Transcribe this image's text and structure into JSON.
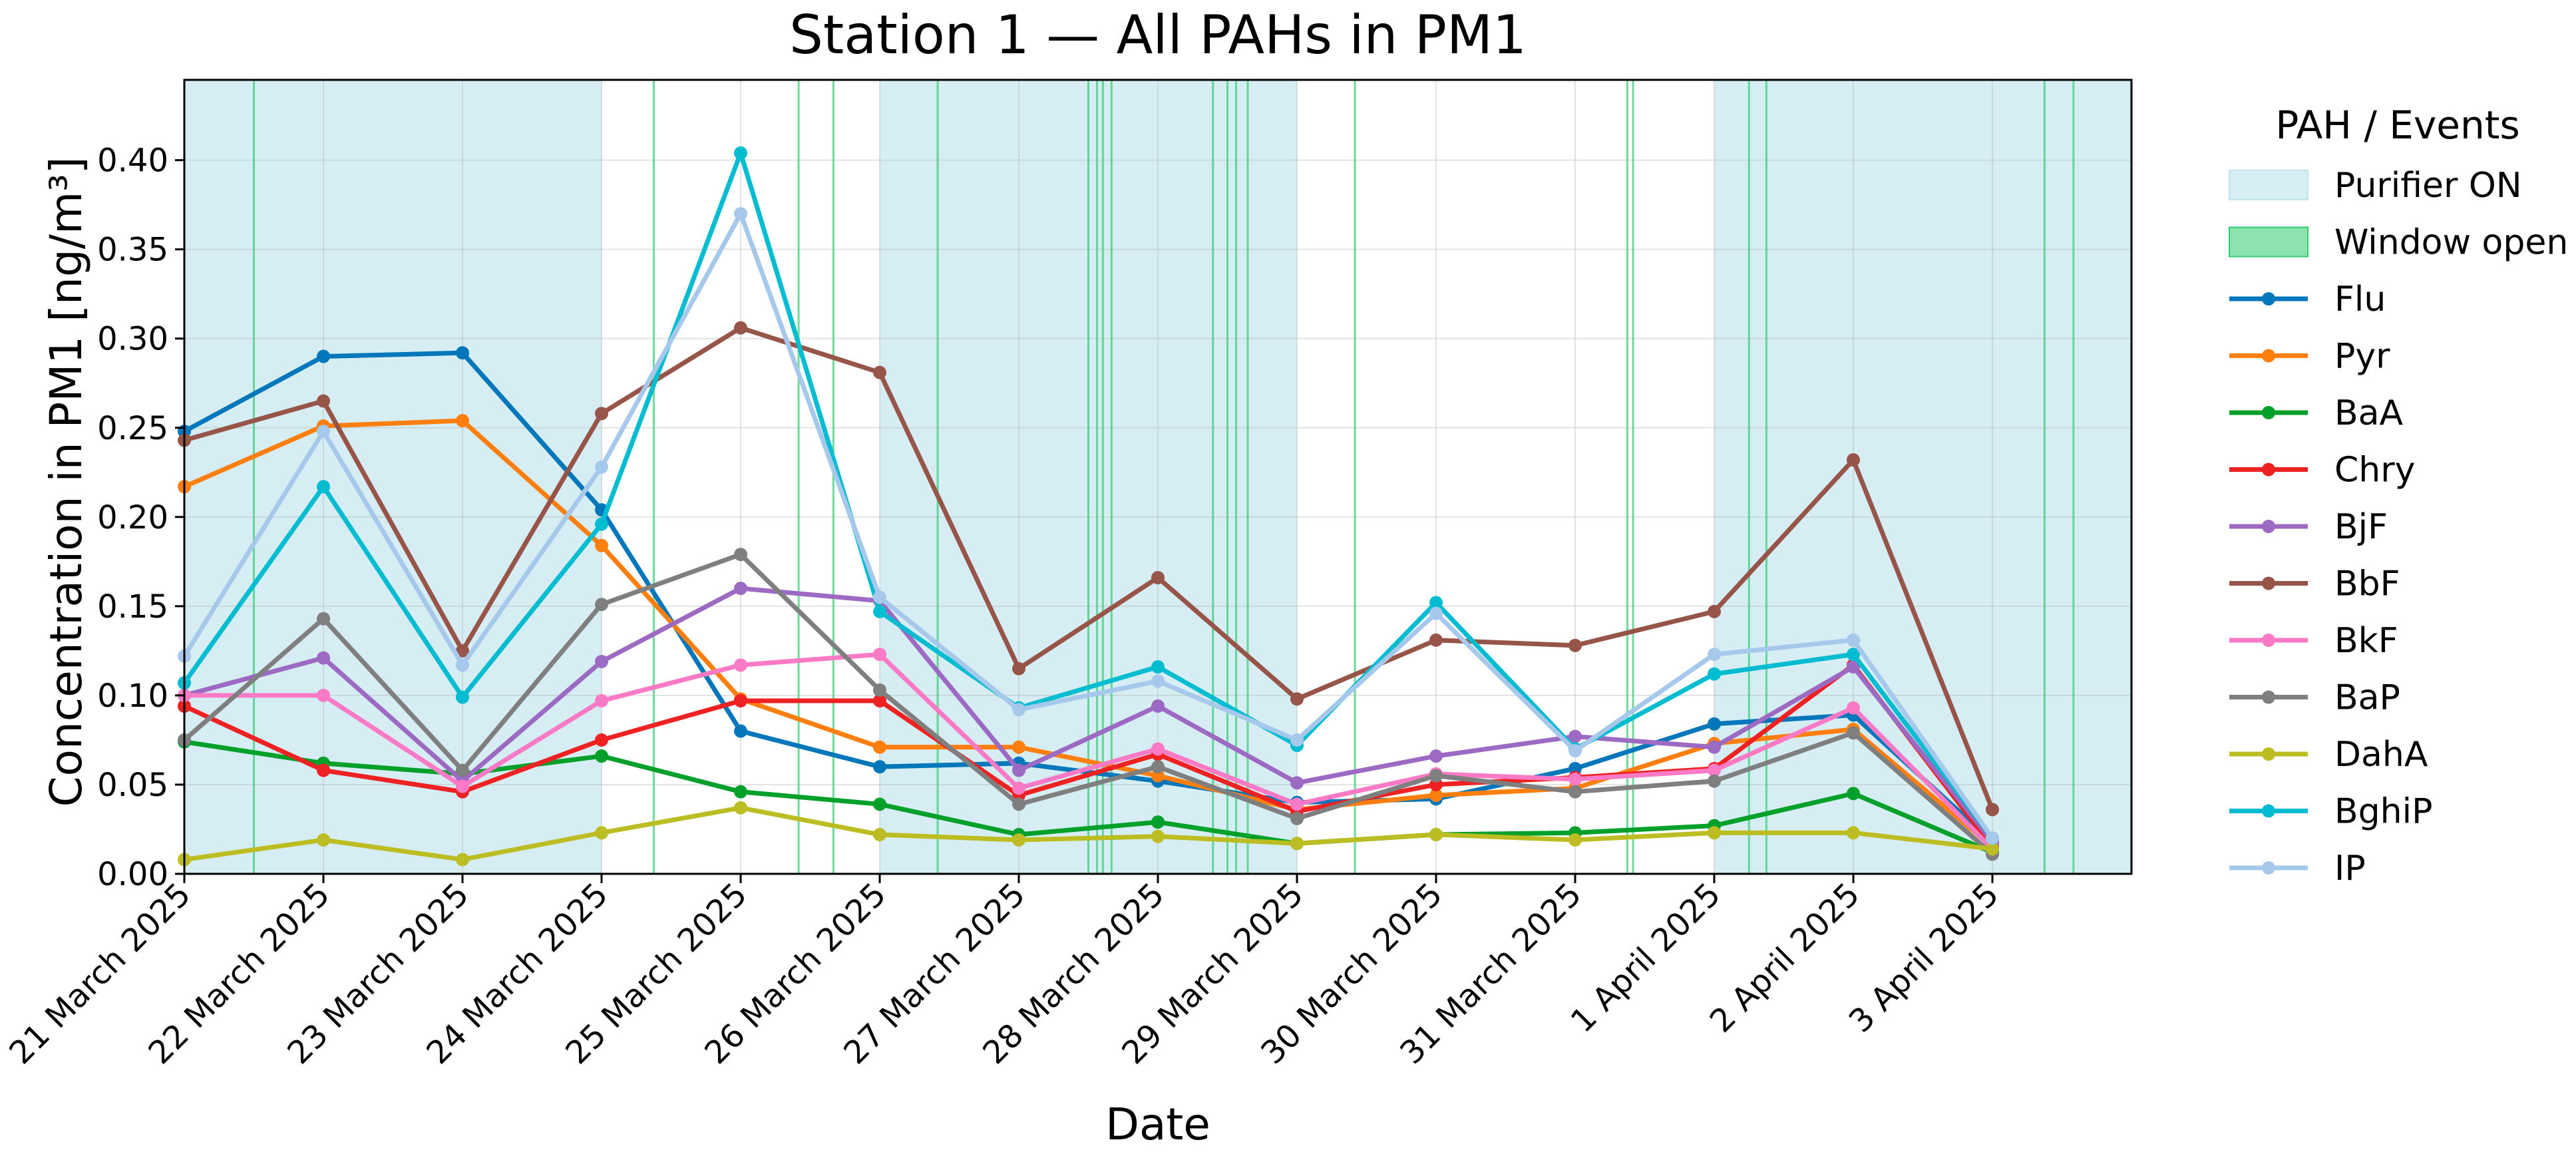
{
  "chart_data": {
    "type": "line",
    "title": "Station 1 — All PAHs in PM1",
    "xlabel": "Date",
    "ylabel": "Concentration in PM1 [ng/m³]",
    "x": [
      "2025-03-21",
      "2025-03-22",
      "2025-03-23",
      "2025-03-24",
      "2025-03-25",
      "2025-03-26",
      "2025-03-27",
      "2025-03-28",
      "2025-03-29",
      "2025-03-30",
      "2025-03-31",
      "2025-04-01",
      "2025-04-02",
      "2025-04-03"
    ],
    "x_tick_labels": [
      "21 March 2025",
      "22 March 2025",
      "23 March 2025",
      "24 March 2025",
      "25 March 2025",
      "26 March 2025",
      "27 March 2025",
      "28 March 2025",
      "29 March 2025",
      "30 March 2025",
      "31 March 2025",
      "1 April 2025",
      "2 April 2025",
      "3 April 2025"
    ],
    "xlim": [
      "2025-03-21 00:00",
      "2025-04-04 00:00"
    ],
    "ylim": [
      0,
      0.445
    ],
    "y_ticks": [
      "0.00",
      "0.05",
      "0.10",
      "0.15",
      "0.20",
      "0.25",
      "0.30",
      "0.35",
      "0.40"
    ],
    "grid": true,
    "legend_title": "PAH / Events",
    "legend_placement": "outside right",
    "purifier_label": "Purifier ON",
    "window_label": "Window open",
    "purifier_color": "#d6eef3",
    "window_color": "#2ecc71",
    "purifier_on": [
      [
        "2025-03-21 00:00",
        "2025-03-24 00:00"
      ],
      [
        "2025-03-26 00:00",
        "2025-03-29 00:00"
      ],
      [
        "2025-04-01 00:00",
        "2025-04-04 00:00"
      ]
    ],
    "window_open": [
      "2025-03-21 12:00",
      "2025-03-24 09:00",
      "2025-03-25 10:00",
      "2025-03-25 16:00",
      "2025-03-26 10:00",
      "2025-03-27 12:00",
      "2025-03-27 13:30",
      "2025-03-27 14:30",
      "2025-03-27 16:00",
      "2025-03-28 09:30",
      "2025-03-28 12:00",
      "2025-03-28 13:30",
      "2025-03-28 15:30",
      "2025-03-29 10:00",
      "2025-03-31 09:00",
      "2025-03-31 10:00",
      "2025-04-01 06:00",
      "2025-04-01 09:00",
      "2025-04-03 09:00",
      "2025-04-03 14:00"
    ],
    "series": [
      {
        "name": "Flu",
        "color": "#0077bb",
        "values": [
          0.248,
          0.29,
          0.292,
          0.204,
          0.08,
          0.06,
          0.062,
          0.052,
          0.04,
          0.042,
          0.059,
          0.084,
          0.089,
          0.018
        ]
      },
      {
        "name": "Pyr",
        "color": "#ff7f0e",
        "values": [
          0.217,
          0.251,
          0.254,
          0.184,
          0.098,
          0.071,
          0.071,
          0.055,
          0.036,
          0.044,
          0.048,
          0.073,
          0.081,
          0.015
        ]
      },
      {
        "name": "BaA",
        "color": "#00a02b",
        "values": [
          0.074,
          0.062,
          0.056,
          0.066,
          0.046,
          0.039,
          0.022,
          0.029,
          0.017,
          0.022,
          0.023,
          0.027,
          0.045,
          0.012
        ]
      },
      {
        "name": "Chry",
        "color": "#ee2222",
        "values": [
          0.094,
          0.058,
          0.046,
          0.075,
          0.097,
          0.097,
          0.044,
          0.067,
          0.035,
          0.05,
          0.054,
          0.059,
          0.117,
          0.015
        ]
      },
      {
        "name": "BjF",
        "color": "#9c6ac3",
        "values": [
          0.1,
          0.121,
          0.052,
          0.119,
          0.16,
          0.153,
          0.058,
          0.094,
          0.051,
          0.066,
          0.077,
          0.071,
          0.116,
          0.018
        ]
      },
      {
        "name": "BbF",
        "color": "#975448",
        "values": [
          0.243,
          0.265,
          0.125,
          0.258,
          0.306,
          0.281,
          0.115,
          0.166,
          0.098,
          0.131,
          0.128,
          0.147,
          0.232,
          0.036
        ]
      },
      {
        "name": "BkF",
        "color": "#fa7ac6",
        "values": [
          0.1,
          0.1,
          0.049,
          0.097,
          0.117,
          0.123,
          0.048,
          0.07,
          0.039,
          0.056,
          0.053,
          0.058,
          0.093,
          0.014
        ]
      },
      {
        "name": "BaP",
        "color": "#7f7f7f",
        "values": [
          0.075,
          0.143,
          0.058,
          0.151,
          0.179,
          0.103,
          0.039,
          0.06,
          0.031,
          0.055,
          0.046,
          0.052,
          0.079,
          0.011
        ]
      },
      {
        "name": "DahA",
        "color": "#bcbd22",
        "values": [
          0.008,
          0.019,
          0.008,
          0.023,
          0.037,
          0.022,
          0.019,
          0.021,
          0.017,
          0.022,
          0.019,
          0.023,
          0.023,
          0.014
        ]
      },
      {
        "name": "BghiP",
        "color": "#00bcd0",
        "values": [
          0.107,
          0.217,
          0.099,
          0.196,
          0.404,
          0.147,
          0.093,
          0.116,
          0.072,
          0.152,
          0.07,
          0.112,
          0.123,
          0.02
        ]
      },
      {
        "name": "IP",
        "color": "#a6c8ea",
        "values": [
          0.122,
          0.248,
          0.117,
          0.228,
          0.37,
          0.155,
          0.092,
          0.108,
          0.075,
          0.146,
          0.069,
          0.123,
          0.131,
          0.02
        ]
      }
    ]
  }
}
